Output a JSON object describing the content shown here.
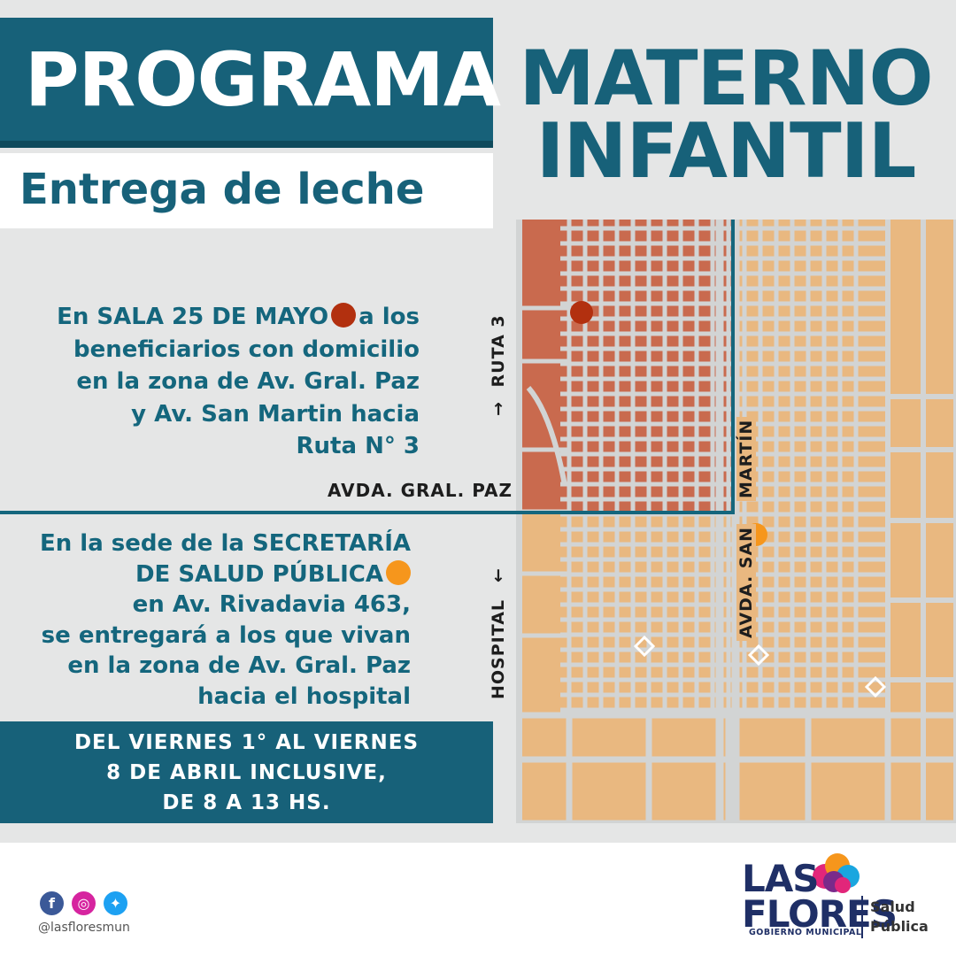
{
  "header": {
    "title_left": "PROGRAMA",
    "title_right_line1": "MATERNO",
    "title_right_line2": "INFANTIL",
    "subtitle": "Entrega de leche"
  },
  "block1": {
    "line1_a": "En SALA 25 DE MAYO",
    "line1_b": "a los",
    "line2": "beneficiarios con domicilio",
    "line3": "en la zona de Av. Gral. Paz",
    "line4": "y Av. San Martin hacia",
    "line5": "Ruta N° 3"
  },
  "block2": {
    "line1": "En la sede de la SECRETARÍA",
    "line2_a": "DE SALUD PÚBLICA",
    "line3": "en Av. Rivadavia 463,",
    "line4": "se entregará a los que vivan",
    "line5": "en la zona de Av. Gral. Paz",
    "line6": "hacia el hospital"
  },
  "map": {
    "label_ruta": "RUTA 3",
    "label_hospital": "HOSPITAL",
    "label_gral_paz": "AVDA. GRAL. PAZ",
    "label_san_martin_top": "MARTÍN",
    "label_san_martin_bottom": "AVDA. SAN",
    "arrow_up": "→",
    "arrow_down": "→",
    "colors": {
      "zone_north": "#c96a4e",
      "zone_south": "#e9b880",
      "streets": "#d2d4d4",
      "marker_sala": "#b2300f",
      "marker_secretaria": "#f6961c"
    }
  },
  "dates": {
    "line1": "DEL VIERNES 1° AL VIERNES",
    "line2": "8 DE ABRIL INCLUSIVE,",
    "line3": "DE 8 A 13 HS."
  },
  "footer": {
    "social_icons": [
      "facebook-icon",
      "instagram-icon",
      "twitter-icon"
    ],
    "handle": "@lasfloresmun",
    "logo_line1": "LAS",
    "logo_line2": "FLORES",
    "logo_tagline": "GOBIERNO MUNICIPAL",
    "dept_line1": "Salud",
    "dept_line2": "Pública"
  },
  "colors": {
    "brand_teal": "#176179",
    "background": "#e5e6e6",
    "logo_navy": "#1f2f66"
  }
}
